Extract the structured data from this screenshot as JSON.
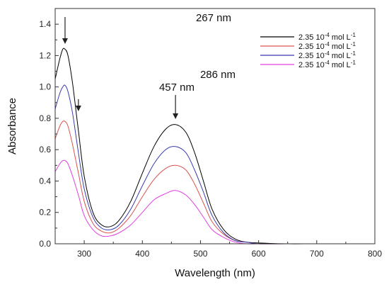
{
  "chart_data": {
    "type": "line",
    "xlabel": "Wavelength (nm)",
    "ylabel": "Absorbance",
    "xlim": [
      250,
      800
    ],
    "ylim": [
      0,
      1.5
    ],
    "x_ticks": [
      "300",
      "400",
      "500",
      "600",
      "700",
      "800"
    ],
    "y_ticks": [
      "0.0",
      "0.2",
      "0.4",
      "0.6",
      "0.8",
      "1.0",
      "1.2",
      "1.4"
    ],
    "grid": false,
    "legend_position": "top-right",
    "annotations": [
      {
        "text": "267 nm",
        "x": 267
      },
      {
        "text": "286 nm",
        "x": 290
      },
      {
        "text": "457 nm",
        "x": 457
      }
    ],
    "series": [
      {
        "legend": {
          "prefix": "2.35 10",
          "exp": "-4",
          "unit": " mol L",
          "unit_exp": "-1"
        },
        "color": "#000000",
        "x": [
          250,
          258,
          263,
          267,
          272,
          280,
          290,
          300,
          315,
          330,
          345,
          360,
          380,
          400,
          420,
          440,
          457,
          475,
          490,
          505,
          520,
          540,
          560,
          580,
          600,
          650,
          700,
          800
        ],
        "values": [
          1.05,
          1.18,
          1.24,
          1.24,
          1.2,
          1.02,
          0.72,
          0.43,
          0.2,
          0.12,
          0.11,
          0.15,
          0.27,
          0.45,
          0.62,
          0.73,
          0.76,
          0.71,
          0.58,
          0.4,
          0.22,
          0.09,
          0.03,
          0.01,
          0.005,
          0.0,
          0.0,
          0.0
        ]
      },
      {
        "legend": {
          "prefix": "2.35 10",
          "exp": "-4",
          "unit": " mol L",
          "unit_exp": "-1"
        },
        "color": "#d9534f",
        "x": [
          250,
          258,
          263,
          267,
          272,
          280,
          290,
          300,
          315,
          330,
          345,
          360,
          380,
          400,
          420,
          440,
          457,
          475,
          490,
          505,
          520,
          540,
          560,
          580,
          600,
          650,
          700,
          800
        ],
        "values": [
          0.67,
          0.75,
          0.78,
          0.78,
          0.75,
          0.63,
          0.45,
          0.27,
          0.13,
          0.08,
          0.07,
          0.1,
          0.18,
          0.3,
          0.41,
          0.48,
          0.5,
          0.47,
          0.38,
          0.26,
          0.14,
          0.06,
          0.02,
          0.01,
          0.0,
          0.0,
          0.0,
          0.0
        ]
      },
      {
        "legend": {
          "prefix": "2.35 10",
          "exp": "-4",
          "unit": " mol L",
          "unit_exp": "-1"
        },
        "color": "#3a3ab0",
        "x": [
          250,
          258,
          263,
          267,
          272,
          280,
          290,
          300,
          315,
          330,
          345,
          360,
          380,
          400,
          420,
          440,
          457,
          475,
          490,
          505,
          520,
          540,
          560,
          580,
          600,
          650,
          700,
          800
        ],
        "values": [
          0.86,
          0.96,
          1.0,
          1.01,
          0.97,
          0.83,
          0.58,
          0.35,
          0.17,
          0.1,
          0.09,
          0.12,
          0.22,
          0.37,
          0.51,
          0.6,
          0.62,
          0.58,
          0.47,
          0.33,
          0.18,
          0.07,
          0.02,
          0.01,
          0.0,
          0.0,
          0.0,
          0.0
        ]
      },
      {
        "legend": {
          "prefix": "2.35 10",
          "exp": "-4",
          "unit": " mol L",
          "unit_exp": "-1"
        },
        "color": "#e040e0",
        "x": [
          250,
          258,
          263,
          267,
          272,
          280,
          290,
          300,
          315,
          330,
          345,
          360,
          380,
          400,
          420,
          440,
          457,
          475,
          490,
          505,
          520,
          540,
          560,
          580,
          600,
          650,
          700,
          800
        ],
        "values": [
          0.46,
          0.51,
          0.53,
          0.53,
          0.51,
          0.43,
          0.31,
          0.18,
          0.09,
          0.05,
          0.05,
          0.07,
          0.12,
          0.2,
          0.28,
          0.32,
          0.34,
          0.31,
          0.25,
          0.17,
          0.09,
          0.04,
          0.01,
          0.0,
          0.0,
          0.0,
          0.0,
          0.0
        ]
      }
    ]
  }
}
